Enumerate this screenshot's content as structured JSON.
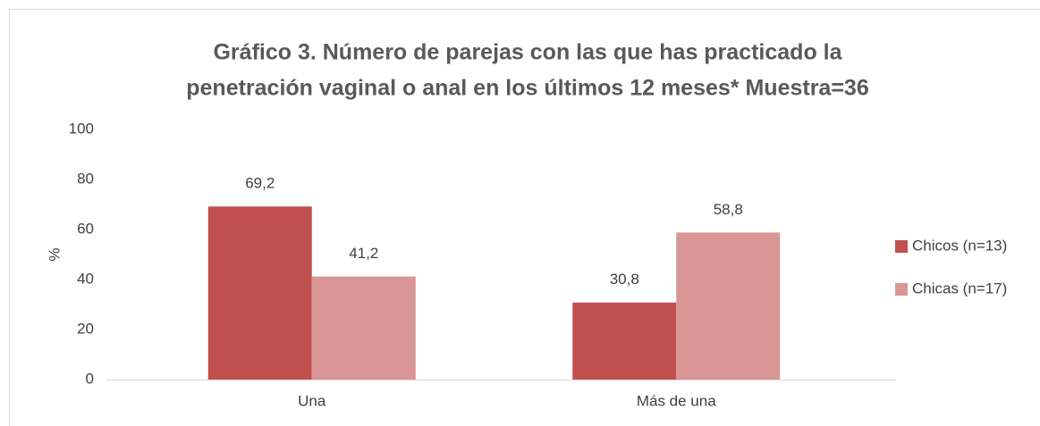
{
  "chart_data": {
    "type": "bar",
    "title": [
      "Gráfico 3. Número de parejas con las que has practicado la",
      "penetración vaginal o anal en los últimos 12 meses* Muestra=36"
    ],
    "y_label": "%",
    "categories": [
      "Una",
      "Más de una"
    ],
    "series": [
      {
        "name": "Chicos (n=13)",
        "color": "#c0504d",
        "values": [
          69.2,
          30.8
        ],
        "value_labels": [
          "69,2",
          "30,8"
        ]
      },
      {
        "name": "Chicas (n=17)",
        "color": "#d99694",
        "values": [
          41.2,
          58.8
        ],
        "value_labels": [
          "41,2",
          "58,8"
        ]
      }
    ],
    "ylim": [
      0,
      100
    ],
    "yticks": [
      0,
      20,
      40,
      60,
      80,
      100
    ],
    "grid": false,
    "legend": "right"
  }
}
